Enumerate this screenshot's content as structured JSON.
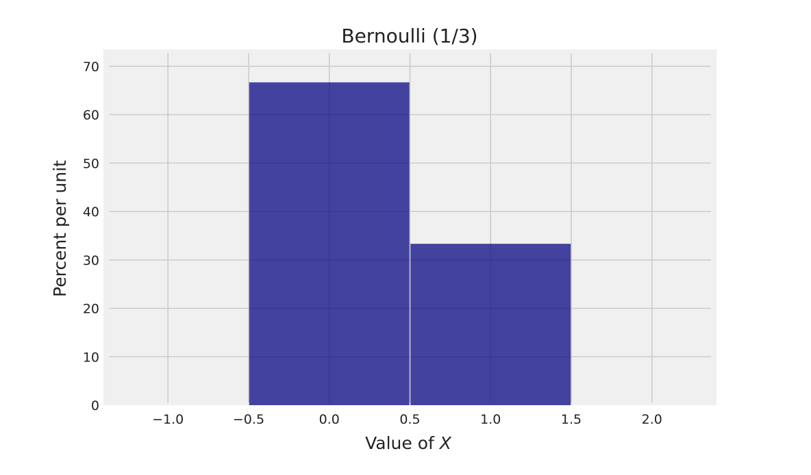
{
  "chart_data": {
    "type": "bar",
    "title": "Bernoulli (1/3)",
    "xlabel_prefix": "Value of ",
    "xlabel_var": "X",
    "ylabel": "Percent per unit",
    "xlim": [
      -1.4,
      2.4
    ],
    "ylim": [
      0,
      73.5
    ],
    "x_ticks": [
      -1.0,
      -0.5,
      0.0,
      0.5,
      1.0,
      1.5,
      2.0
    ],
    "x_tick_labels": [
      "−1.0",
      "−0.5",
      "0.0",
      "0.5",
      "1.0",
      "1.5",
      "2.0"
    ],
    "y_ticks": [
      0,
      10,
      20,
      30,
      40,
      50,
      60,
      70
    ],
    "y_tick_labels": [
      "0",
      "10",
      "20",
      "30",
      "40",
      "50",
      "60",
      "70"
    ],
    "grid": true,
    "bins": [
      {
        "x": 0,
        "left": -0.5,
        "right": 0.5,
        "value": 66.67
      },
      {
        "x": 1,
        "left": 0.5,
        "right": 1.5,
        "value": 33.33
      }
    ],
    "colors": {
      "bar": "#000080",
      "plot_background": "#f0f0f0",
      "grid": "#cbcbcb"
    }
  }
}
